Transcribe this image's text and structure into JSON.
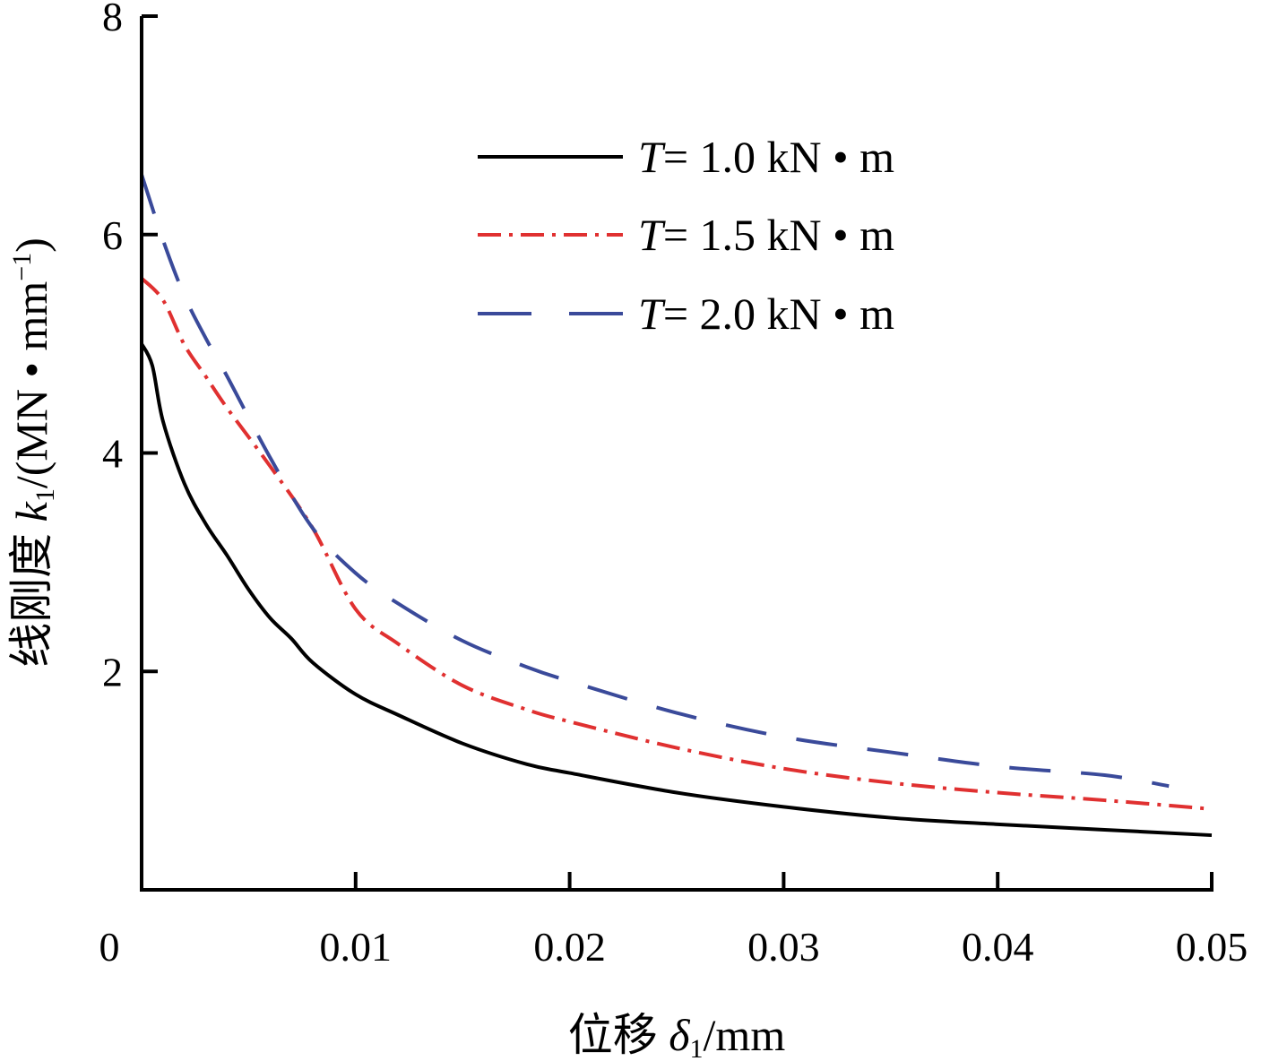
{
  "chart_data": {
    "type": "line",
    "title": "",
    "xlabel": {
      "prefix": "位移 ",
      "symbol": "δ",
      "sub": "1",
      "suffix": "/mm"
    },
    "ylabel": {
      "prefix": "线刚度 ",
      "symbol": "k",
      "sub": "1",
      "suffix": "/(MN • mm",
      "sup": "−1",
      "close": ")"
    },
    "xlim": [
      0,
      0.05
    ],
    "ylim": [
      0,
      8
    ],
    "xticks": [
      "0",
      "0.01",
      "0.02",
      "0.03",
      "0.04",
      "0.05"
    ],
    "xtick_values": [
      0,
      0.01,
      0.02,
      0.03,
      0.04,
      0.05
    ],
    "yticks": [
      "2",
      "4",
      "6",
      "8"
    ],
    "ytick_values": [
      2,
      4,
      6,
      8
    ],
    "grid": false,
    "legend_position": "top-right",
    "series": [
      {
        "name_symbol": "T",
        "name_rest": "= 1.0 kN • m",
        "color": "#000000",
        "dash": "solid",
        "x": [
          0,
          0.0005,
          0.001,
          0.002,
          0.003,
          0.004,
          0.005,
          0.006,
          0.007,
          0.008,
          0.01,
          0.012,
          0.015,
          0.018,
          0.02,
          0.025,
          0.03,
          0.035,
          0.04,
          0.045,
          0.05
        ],
        "y": [
          5.0,
          4.8,
          4.29,
          3.72,
          3.35,
          3.06,
          2.75,
          2.49,
          2.3,
          2.08,
          1.79,
          1.6,
          1.34,
          1.15,
          1.07,
          0.89,
          0.76,
          0.66,
          0.6,
          0.55,
          0.5
        ]
      },
      {
        "name_symbol": "T",
        "name_rest": "= 1.5 kN • m",
        "color": "#e03030",
        "dash": "dashdot",
        "x": [
          0,
          0.001,
          0.002,
          0.003,
          0.004,
          0.006,
          0.008,
          0.01,
          0.012,
          0.015,
          0.018,
          0.02,
          0.025,
          0.03,
          0.035,
          0.04,
          0.045,
          0.05
        ],
        "y": [
          5.6,
          5.4,
          4.99,
          4.7,
          4.41,
          3.88,
          3.31,
          2.57,
          2.25,
          1.87,
          1.65,
          1.54,
          1.3,
          1.11,
          0.98,
          0.89,
          0.82,
          0.74
        ]
      },
      {
        "name_symbol": "T",
        "name_rest": "= 2.0 kN • m",
        "color": "#3a4a9a",
        "dash": "dashed",
        "x": [
          0,
          0.001,
          0.002,
          0.003,
          0.004,
          0.006,
          0.008,
          0.01,
          0.012,
          0.015,
          0.018,
          0.02,
          0.025,
          0.03,
          0.035,
          0.04,
          0.045,
          0.048
        ],
        "y": [
          6.55,
          5.95,
          5.44,
          5.05,
          4.7,
          3.96,
          3.31,
          2.9,
          2.62,
          2.28,
          2.04,
          1.91,
          1.62,
          1.4,
          1.26,
          1.13,
          1.05,
          0.95
        ]
      }
    ]
  }
}
